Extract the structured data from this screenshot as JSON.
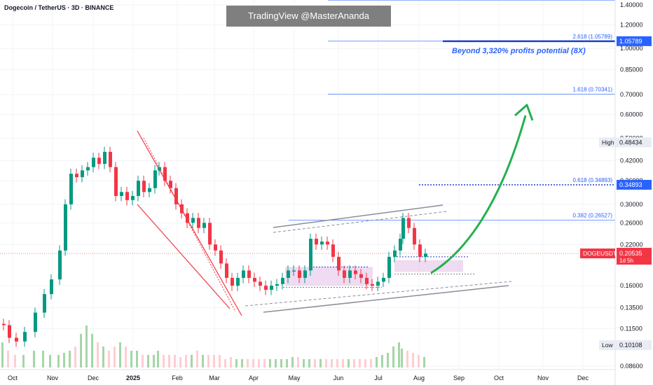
{
  "header": {
    "title": "Dogecoin / TetherUS · 3D · BINANCE"
  },
  "watermark": "TradingView @MasterAnanda",
  "annotation": "Beyond 3,320% profits potential (8X)",
  "colors": {
    "up": "#089981",
    "down": "#f23645",
    "fib": "#2962ff",
    "channel": "#f23645",
    "accent": "#2962ff",
    "arrow": "#22b14c",
    "zone": "#e1bee7",
    "grid": "#f0f3fa",
    "volume_up": "#a5d6a7",
    "volume_down": "#ffcdd2"
  },
  "chart_data": {
    "type": "candlestick",
    "symbol": "DOGEUSDT",
    "scale": "log",
    "ylim": [
      0.082,
      1.45
    ],
    "x_labels": [
      "Oct",
      "Nov",
      "Dec",
      "2025",
      "Feb",
      "Mar",
      "Apr",
      "May",
      "Jun",
      "Jul",
      "Aug",
      "Sep",
      "Oct",
      "Nov",
      "Dec"
    ],
    "y_ticks": [
      "1.40000",
      "1.20000",
      "1.00000",
      "0.85000",
      "0.70000",
      "0.60000",
      "0.50000",
      "0.42000",
      "0.36000",
      "0.30000",
      "0.26000",
      "0.22000",
      "0.16000",
      "0.13500",
      "0.11500",
      "0.08600"
    ],
    "fib_levels": [
      {
        "label": "2.618 (1.05789)",
        "value": 1.05789
      },
      {
        "label": "1.618 (0.70341)",
        "value": 0.70341
      },
      {
        "label": "0.618 (0.34893)",
        "value": 0.34893
      },
      {
        "label": "0.382 (0.26527)",
        "value": 0.26527
      }
    ],
    "badges": [
      {
        "label": "1.05789",
        "value": 1.05789
      },
      {
        "label": "0.48434",
        "tag": "High",
        "value": 0.48434
      },
      {
        "label": "0.34893",
        "value": 0.34893
      },
      {
        "label": "0.20535",
        "tag": "DOGEUSDT",
        "sub": "1d 5h",
        "value": 0.20535
      },
      {
        "label": "0.10108",
        "tag": "Low",
        "value": 0.10108
      }
    ],
    "close_path": [
      [
        0,
        0.118
      ],
      [
        8,
        0.107
      ],
      [
        18,
        0.104
      ],
      [
        30,
        0.112
      ],
      [
        45,
        0.13
      ],
      [
        58,
        0.15
      ],
      [
        68,
        0.168
      ],
      [
        80,
        0.21
      ],
      [
        88,
        0.3
      ],
      [
        96,
        0.38
      ],
      [
        104,
        0.37
      ],
      [
        112,
        0.39
      ],
      [
        120,
        0.4
      ],
      [
        128,
        0.43
      ],
      [
        136,
        0.41
      ],
      [
        144,
        0.45
      ],
      [
        152,
        0.4
      ],
      [
        160,
        0.32
      ],
      [
        168,
        0.33
      ],
      [
        176,
        0.31
      ],
      [
        184,
        0.32
      ],
      [
        192,
        0.36
      ],
      [
        200,
        0.33
      ],
      [
        208,
        0.34
      ],
      [
        216,
        0.39
      ],
      [
        222,
        0.4
      ],
      [
        230,
        0.36
      ],
      [
        238,
        0.34
      ],
      [
        246,
        0.3
      ],
      [
        254,
        0.28
      ],
      [
        262,
        0.26
      ],
      [
        270,
        0.27
      ],
      [
        278,
        0.25
      ],
      [
        286,
        0.26
      ],
      [
        294,
        0.22
      ],
      [
        302,
        0.21
      ],
      [
        310,
        0.19
      ],
      [
        318,
        0.17
      ],
      [
        326,
        0.16
      ],
      [
        334,
        0.17
      ],
      [
        342,
        0.18
      ],
      [
        350,
        0.17
      ],
      [
        358,
        0.165
      ],
      [
        366,
        0.16
      ],
      [
        374,
        0.155
      ],
      [
        382,
        0.16
      ],
      [
        390,
        0.162
      ],
      [
        398,
        0.17
      ],
      [
        406,
        0.18
      ],
      [
        414,
        0.18
      ],
      [
        422,
        0.17
      ],
      [
        430,
        0.18
      ],
      [
        438,
        0.23
      ],
      [
        446,
        0.22
      ],
      [
        454,
        0.225
      ],
      [
        462,
        0.22
      ],
      [
        470,
        0.2
      ],
      [
        478,
        0.18
      ],
      [
        486,
        0.17
      ],
      [
        494,
        0.18
      ],
      [
        502,
        0.175
      ],
      [
        510,
        0.17
      ],
      [
        518,
        0.162
      ],
      [
        526,
        0.16
      ],
      [
        534,
        0.165
      ],
      [
        542,
        0.17
      ],
      [
        550,
        0.2
      ],
      [
        558,
        0.21
      ],
      [
        566,
        0.23
      ],
      [
        570,
        0.27
      ],
      [
        578,
        0.25
      ],
      [
        586,
        0.22
      ],
      [
        594,
        0.2
      ],
      [
        602,
        0.205
      ]
    ],
    "volume": [
      0.6,
      0.4,
      0.3,
      0.3,
      0.4,
      0.4,
      0.3,
      0.3,
      0.35,
      0.4,
      0.5,
      0.8,
      1,
      0.8,
      0.6,
      0.5,
      0.4,
      0.5,
      0.6,
      0.5,
      0.4,
      0.4,
      0.3,
      0.3,
      0.3,
      0.4,
      0.3,
      0.3,
      0.3,
      0.25,
      0.3,
      0.3,
      0.4,
      0.3,
      0.3,
      0.3,
      0.3,
      0.2,
      0.25,
      0.2,
      0.2,
      0.2,
      0.2,
      0.2,
      0.2,
      0.2,
      0.2,
      0.2,
      0.2,
      0.25,
      0.25,
      0.2,
      0.2,
      0.2,
      0.2,
      0.2,
      0.2,
      0.2,
      0.2,
      0.2,
      0.2,
      0.2,
      0.2,
      0.2,
      0.25,
      0.3,
      0.35,
      0.5,
      0.6,
      0.45,
      0.4,
      0.35,
      0.3,
      0.25,
      0.2
    ]
  }
}
